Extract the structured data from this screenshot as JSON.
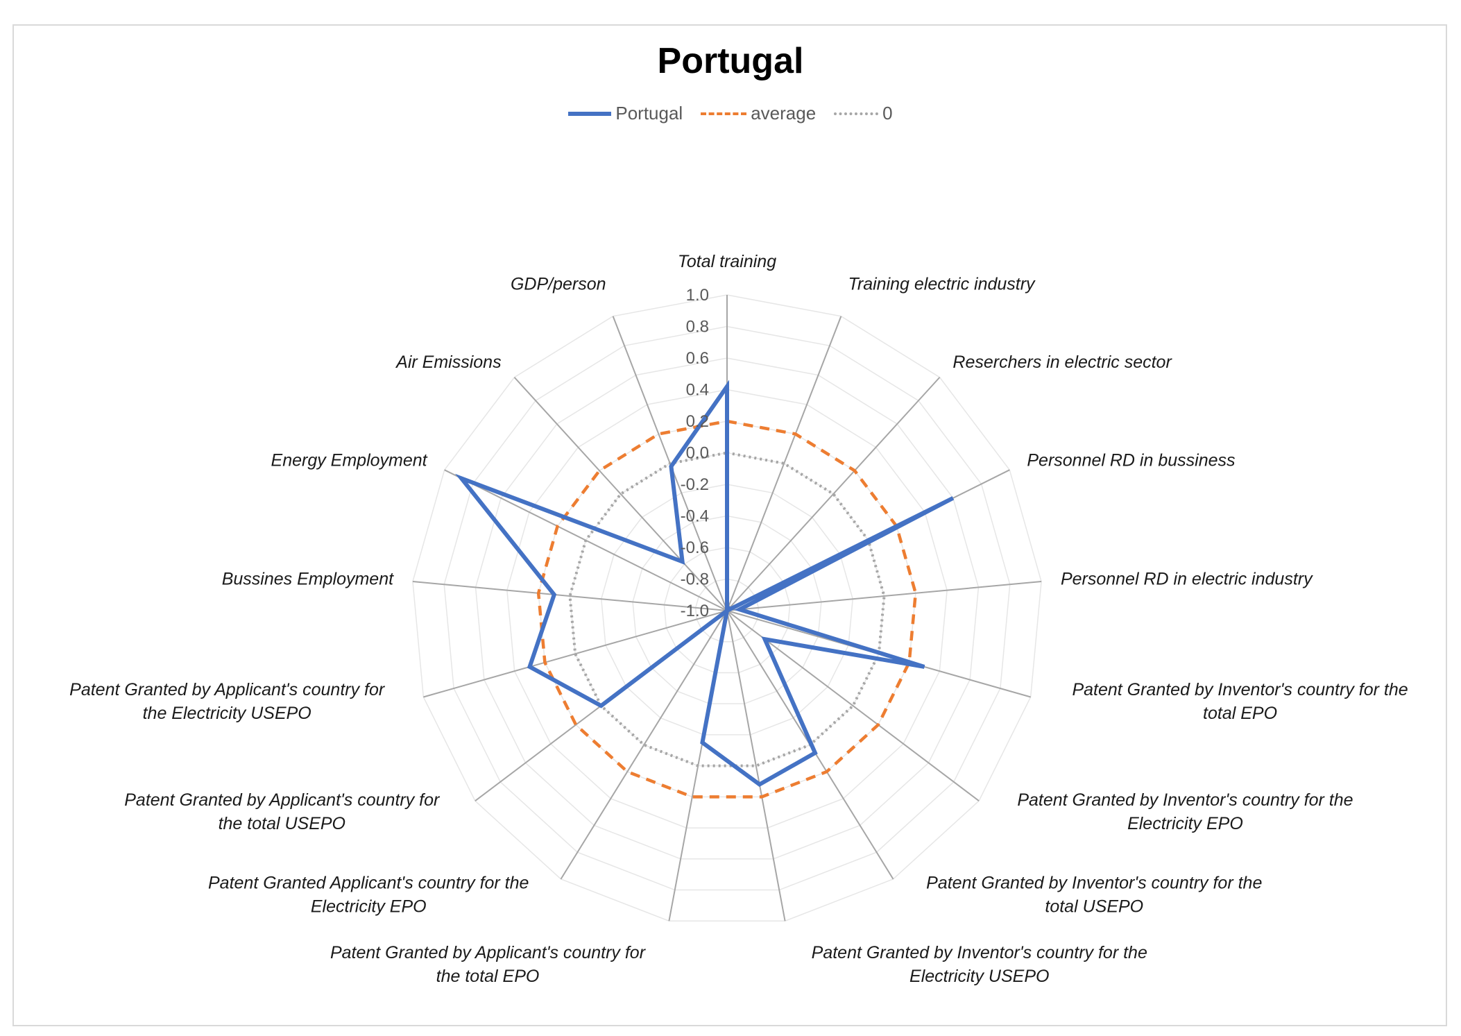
{
  "chart_data": {
    "type": "radar",
    "title": "Portugal",
    "categories": [
      "Total training",
      "Training electric industry",
      "Reserchers in electric sector",
      "Personnel RD in bussiness",
      "Personnel RD in electric industry",
      "Patent Granted by Inventor's country for the total EPO",
      "Patent Granted by Inventor's country for the Electricity EPO",
      "Patent Granted by Inventor's country for the total USEPO",
      "Patent Granted by Inventor's country for the Electricity USEPO",
      "Patent Granted by Applicant's country for the total EPO",
      "Patent Granted Applicant's country for the Electricity EPO",
      "Patent Granted by Applicant's country for the total USEPO",
      "Patent Granted by Applicant's country for the Electricity USEPO",
      "Bussines Employment",
      "Energy Employment",
      "Air Emissions",
      "GDP/person"
    ],
    "label_lines": [
      [
        "Total training"
      ],
      [
        "Training electric industry"
      ],
      [
        "Reserchers in electric sector"
      ],
      [
        "Personnel RD in bussiness"
      ],
      [
        "Personnel RD in electric industry"
      ],
      [
        "Patent Granted by Inventor's country for the",
        "total EPO"
      ],
      [
        "Patent Granted by Inventor's country for the",
        "Electricity EPO"
      ],
      [
        "Patent Granted by Inventor's country for the",
        "total USEPO"
      ],
      [
        "Patent Granted by Inventor's country for the",
        "Electricity USEPO"
      ],
      [
        "Patent Granted by Applicant's country for",
        "the total EPO"
      ],
      [
        "Patent Granted Applicant's country for the",
        "Electricity EPO"
      ],
      [
        "Patent Granted by Applicant's country for",
        "the total USEPO"
      ],
      [
        "Patent Granted by Applicant's country for",
        "the Electricity USEPO"
      ],
      [
        "Bussines Employment"
      ],
      [
        "Energy Employment"
      ],
      [
        "Air Emissions"
      ],
      [
        "GDP/person"
      ]
    ],
    "series": [
      {
        "name": "Portugal",
        "color": "#4472C4",
        "style": "solid",
        "values": [
          0.42,
          -1.0,
          -1.0,
          0.6,
          -0.92,
          0.3,
          -0.7,
          0.06,
          0.12,
          -0.15,
          -1.0,
          0.0,
          0.3,
          0.1,
          0.88,
          -0.58,
          -0.02
        ]
      },
      {
        "name": "average",
        "color": "#ED7D31",
        "style": "dashed",
        "values": [
          0.2,
          0.2,
          0.2,
          0.2,
          0.2,
          0.2,
          0.2,
          0.2,
          0.2,
          0.2,
          0.2,
          0.2,
          0.2,
          0.2,
          0.2,
          0.2,
          0.2
        ]
      },
      {
        "name": "0",
        "color": "#A6A6A6",
        "style": "dotted",
        "values": [
          0,
          0,
          0,
          0,
          0,
          0,
          0,
          0,
          0,
          0,
          0,
          0,
          0,
          0,
          0,
          0,
          0
        ]
      }
    ],
    "rlim": [
      -1.0,
      1.0
    ],
    "ticks": [
      "1.0",
      "0.8",
      "0.6",
      "0.4",
      "0.2",
      "0.0",
      "-0.2",
      "-0.4",
      "-0.6",
      "-0.8",
      "-1.0"
    ],
    "legend": "top"
  }
}
